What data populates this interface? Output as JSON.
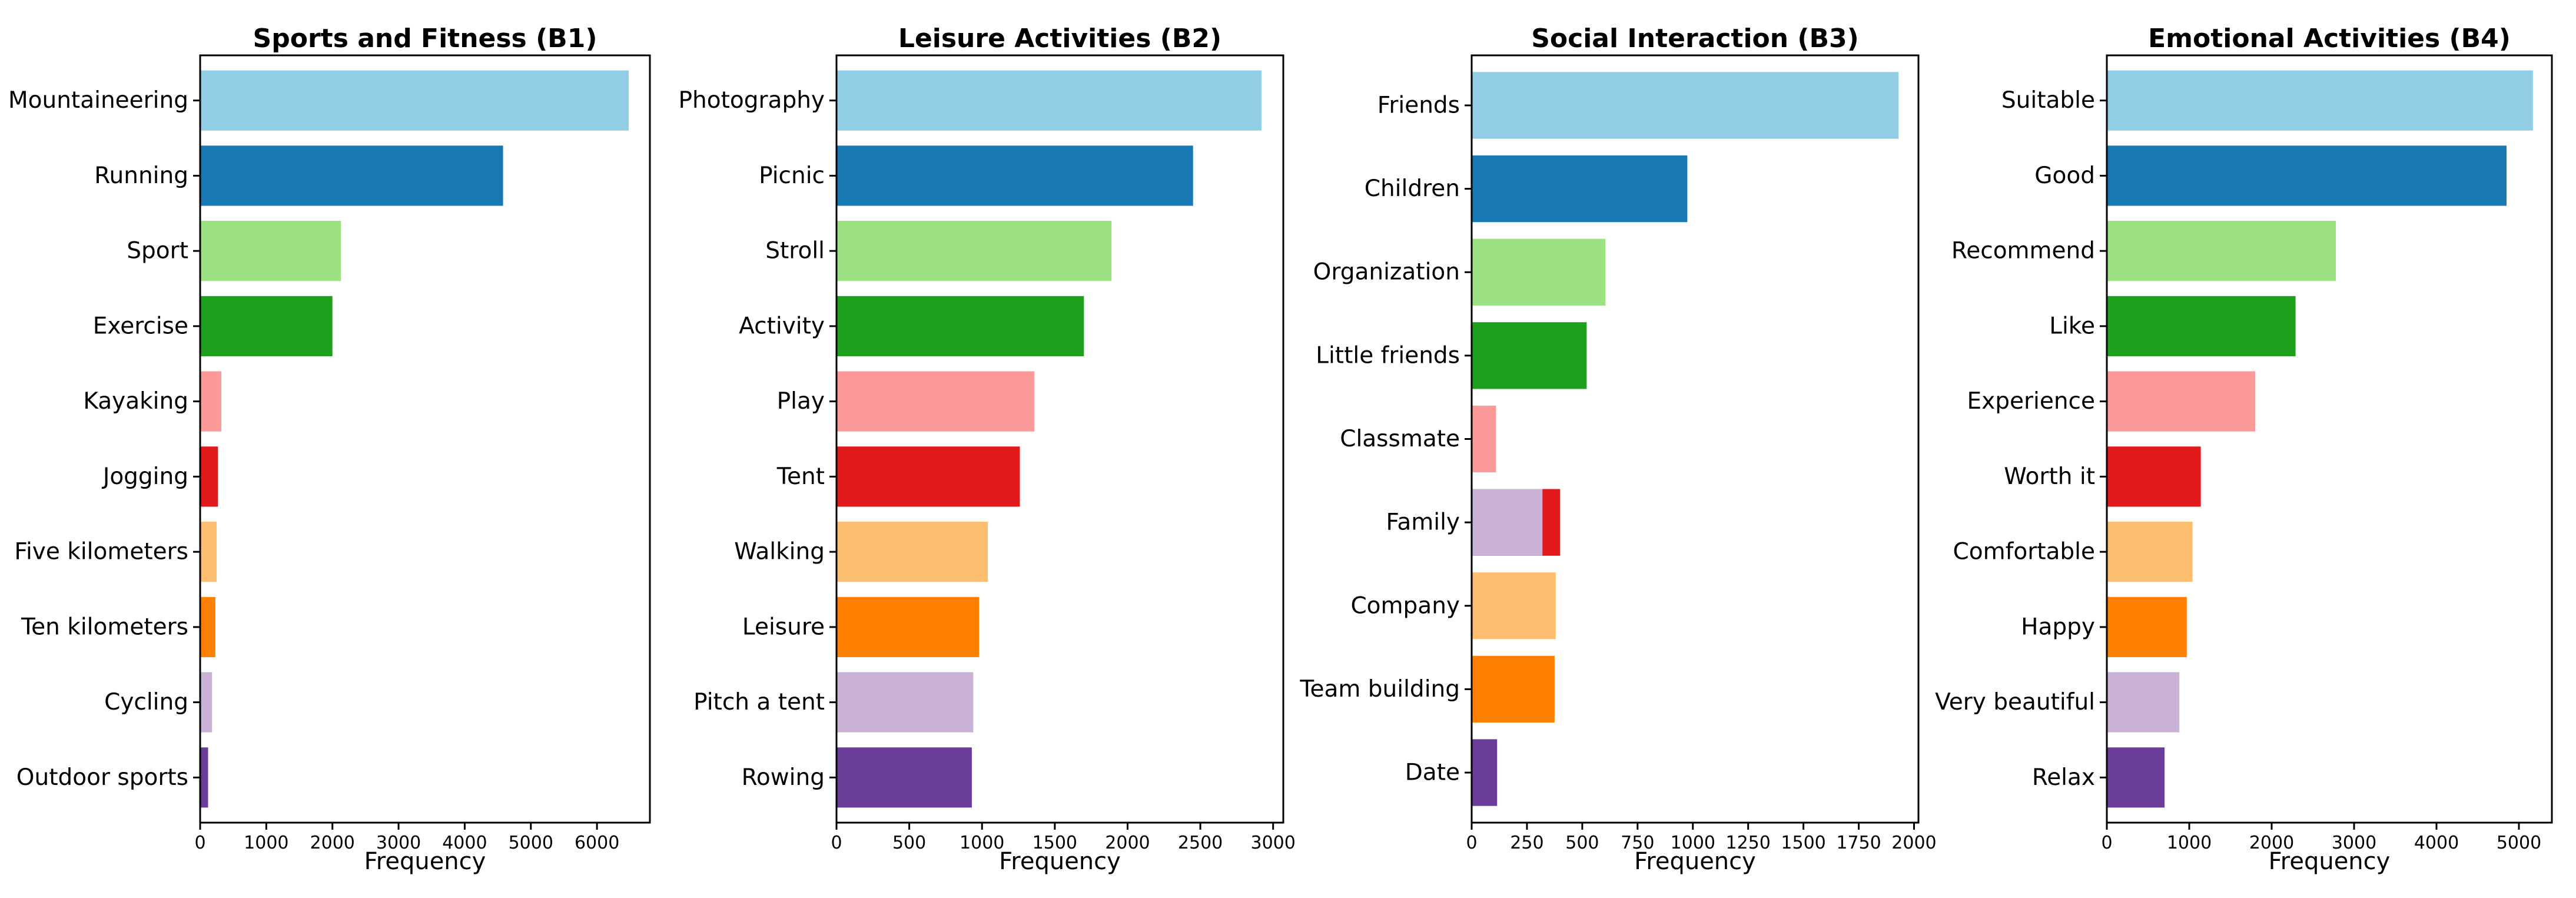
{
  "chart_data": [
    {
      "type": "bar",
      "orientation": "horizontal",
      "title": "Sports and Fitness (B1)",
      "xlabel": "Frequency",
      "xlim": [
        0,
        6800
      ],
      "xticks": [
        0,
        1000,
        2000,
        3000,
        4000,
        5000,
        6000
      ],
      "categories": [
        "Mountaineering",
        "Running",
        "Sport",
        "Exercise",
        "Kayaking",
        "Jogging",
        "Five kilometers",
        "Ten kilometers",
        "Cycling",
        "Outdoor sports"
      ],
      "values": [
        6480,
        4580,
        2130,
        2000,
        320,
        270,
        250,
        230,
        180,
        120
      ],
      "colors": [
        "#92cde6",
        "#1878b4",
        "#9ce283",
        "#1ea01e",
        "#fb9a99",
        "#e31a1c",
        "#fdbf6f",
        "#ff7f00",
        "#cab2d6",
        "#6a3d9a"
      ]
    },
    {
      "type": "bar",
      "orientation": "horizontal",
      "title": "Leisure Activities (B2)",
      "xlabel": "Frequency",
      "xlim": [
        0,
        3070
      ],
      "xticks": [
        0,
        500,
        1000,
        1500,
        2000,
        2500,
        3000
      ],
      "categories": [
        "Photography",
        "Picnic",
        "Stroll",
        "Activity",
        "Play",
        "Tent",
        "Walking",
        "Leisure",
        "Pitch a tent",
        "Rowing"
      ],
      "values": [
        2920,
        2450,
        1890,
        1700,
        1360,
        1260,
        1040,
        980,
        940,
        930
      ],
      "colors": [
        "#92cde6",
        "#1878b4",
        "#9ce283",
        "#1ea01e",
        "#fb9a99",
        "#e31a1c",
        "#fdbf6f",
        "#ff7f00",
        "#cab2d6",
        "#6a3d9a"
      ]
    },
    {
      "type": "bar",
      "orientation": "horizontal",
      "title": "Social Interaction (B3)",
      "xlabel": "Frequency",
      "xlim": [
        0,
        2020
      ],
      "xticks": [
        0,
        250,
        500,
        750,
        1000,
        1250,
        1500,
        1750,
        2000
      ],
      "categories": [
        "Friends",
        "Children",
        "Organization",
        "Little friends",
        "Classmate",
        "Family",
        "Company",
        "Team building",
        "Date"
      ],
      "values": [
        1930,
        975,
        605,
        520,
        110,
        400,
        380,
        375,
        115
      ],
      "colors": [
        "#92cde6",
        "#1878b4",
        "#9ce283",
        "#1ea01e",
        "#fb9a99",
        "#e31a1c",
        "#fdbf6f",
        "#ff7f00",
        "#6a3d9a"
      ],
      "overlay": {
        "category": "Family",
        "value": 320,
        "color": "#cab2d6"
      }
    },
    {
      "type": "bar",
      "orientation": "horizontal",
      "title": "Emotional Activities (B4)",
      "xlabel": "Frequency",
      "xlim": [
        0,
        5400
      ],
      "xticks": [
        0,
        1000,
        2000,
        3000,
        4000,
        5000
      ],
      "categories": [
        "Suitable",
        "Good",
        "Recommend",
        "Like",
        "Experience",
        "Worth it",
        "Comfortable",
        "Happy",
        "Very beautiful",
        "Relax"
      ],
      "values": [
        5170,
        4850,
        2780,
        2290,
        1800,
        1140,
        1040,
        970,
        880,
        700
      ],
      "colors": [
        "#92cde6",
        "#1878b4",
        "#9ce283",
        "#1ea01e",
        "#fb9a99",
        "#e31a1c",
        "#fdbf6f",
        "#ff7f00",
        "#cab2d6",
        "#6a3d9a"
      ]
    }
  ]
}
